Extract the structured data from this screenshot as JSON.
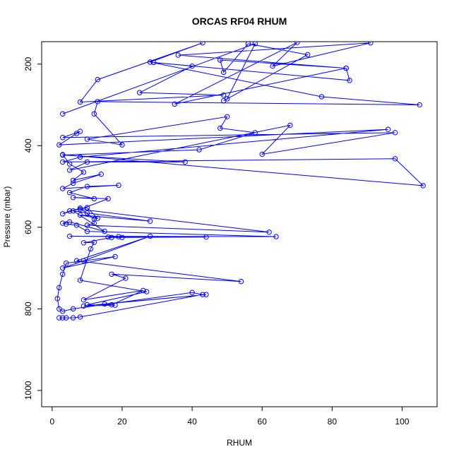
{
  "chart_data": {
    "type": "line",
    "title": "ORCAS RF04 RHUM",
    "xlabel": "RHUM",
    "ylabel": "Pressure (mbar)",
    "xlim": [
      -3,
      110
    ],
    "ylim": [
      1040,
      145
    ],
    "y_reversed": true,
    "grid": false,
    "legend": "none",
    "x_ticks": [
      0,
      20,
      40,
      60,
      80,
      100
    ],
    "y_ticks": [
      200,
      400,
      600,
      800,
      1000
    ],
    "series_color": "#0000ff",
    "marker": "open-circle",
    "series": [
      {
        "points": [
          [
            2,
            822
          ],
          [
            3,
            822
          ],
          [
            4,
            822
          ],
          [
            6,
            822
          ],
          [
            8,
            820
          ],
          [
            43,
            765
          ],
          [
            40,
            760
          ],
          [
            6,
            800
          ],
          [
            3,
            806
          ],
          [
            2,
            800
          ],
          [
            1.5,
            775
          ],
          [
            2,
            748
          ],
          [
            3,
            715
          ],
          [
            4,
            688
          ],
          [
            18,
            672
          ],
          [
            3,
            700
          ],
          [
            9,
            682
          ],
          [
            28,
            622
          ],
          [
            7,
            682
          ],
          [
            54,
            733
          ],
          [
            17,
            715
          ],
          [
            21,
            725
          ],
          [
            9,
            778
          ],
          [
            26,
            755
          ],
          [
            17,
            790
          ],
          [
            15,
            788
          ],
          [
            44,
            765
          ],
          [
            9,
            793
          ],
          [
            18,
            791
          ],
          [
            10,
            790
          ],
          [
            27,
            758
          ],
          [
            8,
            730
          ],
          [
            11,
            653
          ],
          [
            12,
            637
          ],
          [
            9,
            638
          ],
          [
            17,
            625
          ],
          [
            20,
            625
          ],
          [
            44,
            624
          ],
          [
            16,
            624
          ],
          [
            19,
            623
          ],
          [
            5,
            622
          ],
          [
            64,
            623
          ],
          [
            10,
            610
          ],
          [
            7,
            595
          ],
          [
            4,
            592
          ],
          [
            3,
            590
          ],
          [
            5,
            587
          ],
          [
            15,
            610
          ],
          [
            6,
            560
          ],
          [
            10,
            565
          ],
          [
            28,
            585
          ],
          [
            8,
            570
          ],
          [
            13,
            578
          ],
          [
            10,
            552
          ],
          [
            5,
            560
          ],
          [
            3,
            567
          ],
          [
            8,
            553
          ],
          [
            12,
            580
          ],
          [
            12,
            590
          ],
          [
            10,
            595
          ],
          [
            62,
            612
          ],
          [
            8,
            556
          ],
          [
            16,
            530
          ],
          [
            6,
            527
          ],
          [
            12,
            530
          ],
          [
            5,
            515
          ],
          [
            10,
            500
          ],
          [
            19,
            497
          ],
          [
            3,
            505
          ],
          [
            6,
            492
          ],
          [
            14,
            470
          ],
          [
            6,
            485
          ],
          [
            9,
            465
          ],
          [
            5,
            445
          ],
          [
            3,
            422
          ],
          [
            106,
            498
          ],
          [
            98,
            432
          ],
          [
            3,
            440
          ],
          [
            8,
            428
          ],
          [
            96,
            360
          ],
          [
            2,
            398
          ],
          [
            7,
            370
          ],
          [
            8,
            365
          ],
          [
            3,
            380
          ],
          [
            98,
            368
          ],
          [
            60,
            421
          ],
          [
            68,
            350
          ],
          [
            5,
            460
          ],
          [
            10,
            440
          ],
          [
            38,
            440
          ],
          [
            3,
            423
          ],
          [
            42,
            410
          ],
          [
            58,
            368
          ],
          [
            48,
            357
          ],
          [
            50,
            329
          ],
          [
            10,
            384
          ],
          [
            20,
            398
          ],
          [
            12,
            322
          ],
          [
            13,
            292
          ],
          [
            105,
            300
          ],
          [
            77,
            280
          ],
          [
            28,
            195
          ],
          [
            43,
            148
          ],
          [
            13,
            238
          ],
          [
            8,
            293
          ],
          [
            49,
            276
          ],
          [
            25,
            270
          ],
          [
            40,
            205
          ],
          [
            29,
            196
          ],
          [
            85,
            240
          ],
          [
            84,
            210
          ],
          [
            36,
            178
          ],
          [
            91,
            148
          ],
          [
            63,
            205
          ],
          [
            70,
            147
          ],
          [
            35,
            298
          ],
          [
            84,
            210
          ],
          [
            48,
            190
          ],
          [
            49,
            220
          ],
          [
            56,
            150
          ],
          [
            73,
            177
          ],
          [
            49,
            290
          ],
          [
            50,
            285
          ],
          [
            58,
            150
          ],
          [
            3,
            322
          ]
        ]
      }
    ]
  }
}
